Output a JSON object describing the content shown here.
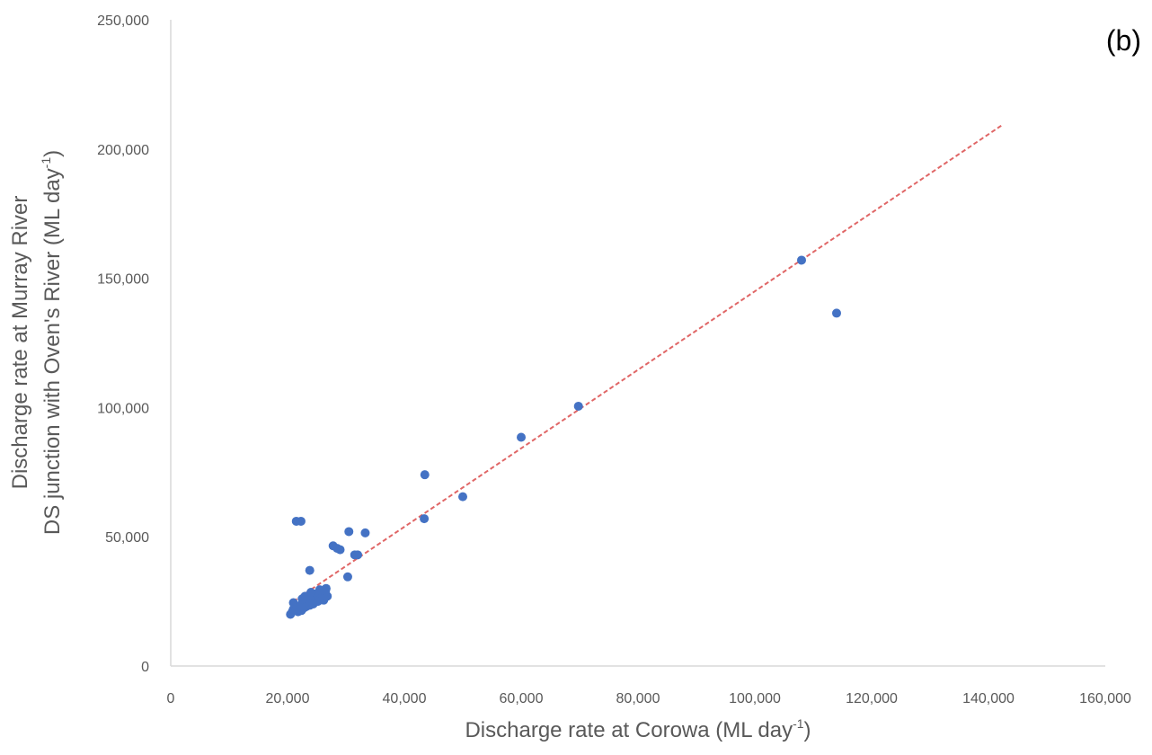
{
  "chart_data": {
    "type": "scatter",
    "panel_label": "(b)",
    "xlabel": {
      "main": "Discharge rate at Corowa (ML day",
      "superscript": "-1",
      "end": ")"
    },
    "ylabel": {
      "line1": "Discharge rate at Murray River",
      "line2": {
        "main": "DS junction with Oven's River (ML day",
        "superscript": "-1",
        "end": ")"
      }
    },
    "xlim": [
      0,
      160000
    ],
    "ylim": [
      0,
      250000
    ],
    "x_ticks": [
      0,
      20000,
      40000,
      60000,
      80000,
      100000,
      120000,
      140000,
      160000
    ],
    "x_tick_labels": [
      "0",
      "20,000",
      "40,000",
      "60,000",
      "80,000",
      "100,000",
      "120,000",
      "140,000",
      "160,000"
    ],
    "y_ticks": [
      0,
      50000,
      100000,
      150000,
      200000,
      250000
    ],
    "y_tick_labels": [
      "0",
      "50,000",
      "100,000",
      "150,000",
      "200,000",
      "250,000"
    ],
    "grid": false,
    "marker_color": "#4472c4",
    "trendline": {
      "style": "dashed",
      "color": "#e06666",
      "x": [
        21000,
        142500
      ],
      "y": [
        25000,
        209500
      ]
    },
    "points": [
      [
        20500,
        20000
      ],
      [
        20800,
        21000
      ],
      [
        21000,
        22000
      ],
      [
        21200,
        23000
      ],
      [
        21000,
        24500
      ],
      [
        21400,
        21500
      ],
      [
        21600,
        22500
      ],
      [
        21800,
        21000
      ],
      [
        22000,
        22000
      ],
      [
        22200,
        23500
      ],
      [
        22400,
        21500
      ],
      [
        22600,
        24000
      ],
      [
        22800,
        22500
      ],
      [
        23000,
        25000
      ],
      [
        23200,
        23000
      ],
      [
        23400,
        24500
      ],
      [
        23600,
        26000
      ],
      [
        23800,
        23500
      ],
      [
        24000,
        25000
      ],
      [
        24200,
        27000
      ],
      [
        24400,
        24000
      ],
      [
        24600,
        25500
      ],
      [
        24800,
        26500
      ],
      [
        25000,
        28000
      ],
      [
        25200,
        25000
      ],
      [
        25400,
        27000
      ],
      [
        25600,
        26000
      ],
      [
        25800,
        29000
      ],
      [
        26000,
        27500
      ],
      [
        26200,
        25500
      ],
      [
        26400,
        28500
      ],
      [
        26600,
        30000
      ],
      [
        26800,
        27000
      ],
      [
        23000,
        27000
      ],
      [
        22500,
        26000
      ],
      [
        24000,
        28500
      ],
      [
        25500,
        29500
      ],
      [
        26500,
        29000
      ],
      [
        21500,
        56000
      ],
      [
        22300,
        56000
      ],
      [
        23800,
        37000
      ],
      [
        27800,
        46500
      ],
      [
        28500,
        45500
      ],
      [
        29000,
        45000
      ],
      [
        30500,
        52000
      ],
      [
        30300,
        34500
      ],
      [
        31500,
        43000
      ],
      [
        32000,
        43000
      ],
      [
        33300,
        51500
      ],
      [
        43400,
        57000
      ],
      [
        43500,
        74000
      ],
      [
        50000,
        65500
      ],
      [
        60000,
        88500
      ],
      [
        69800,
        100500
      ],
      [
        108000,
        157000
      ],
      [
        114000,
        136500
      ]
    ]
  }
}
